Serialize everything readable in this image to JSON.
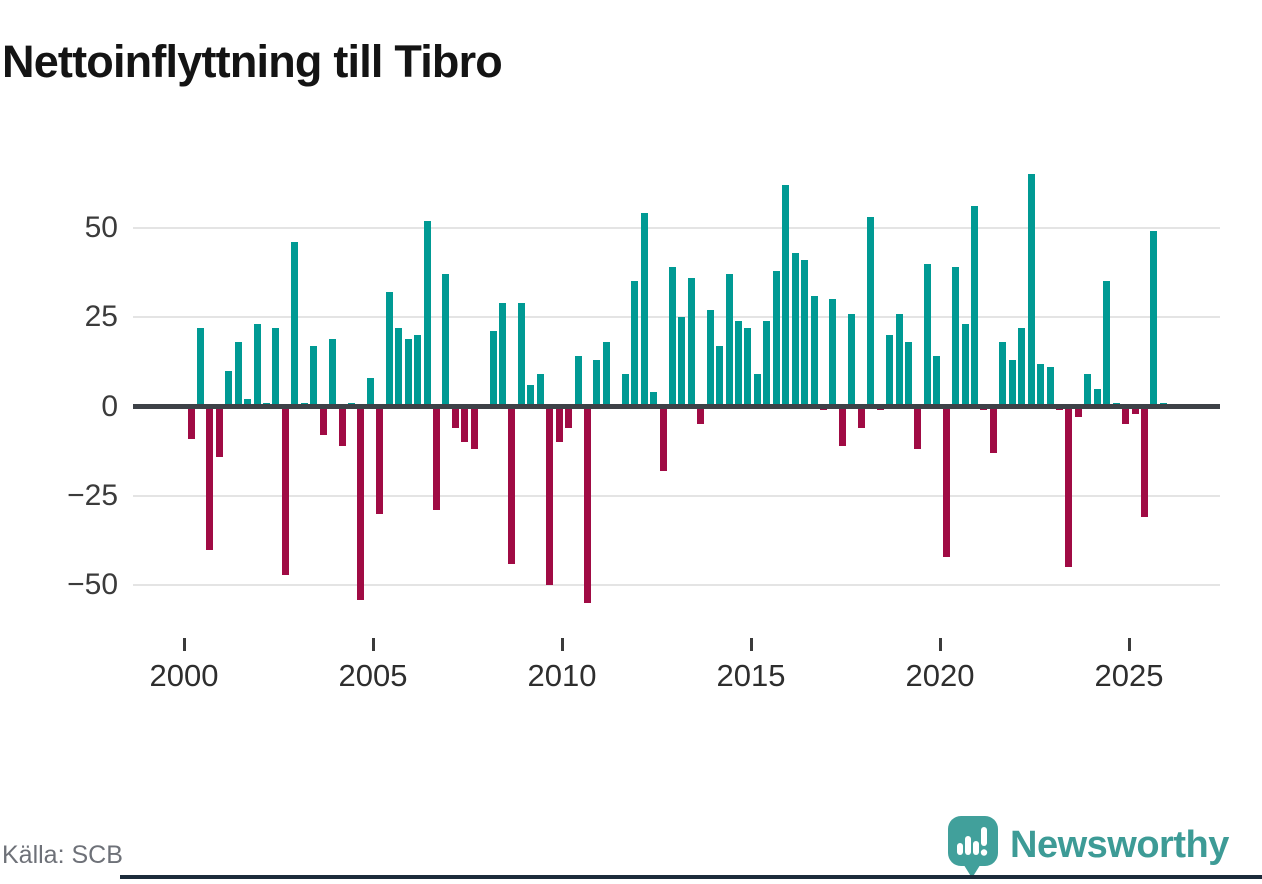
{
  "title": "Nettoinflyttning till Tibro",
  "source": "Källa: SCB",
  "branding": {
    "logo_text": "Newsworthy",
    "logo_wordmark_color": "#3d9b96",
    "logo_bubble_color": "#41a09b",
    "logo_icon": "bar-chart-exclamation-speech-bubble",
    "footer_bar_color": "#1c2b3a"
  },
  "chart_data": {
    "type": "bar",
    "title": "Nettoinflyttning till Tibro",
    "xlabel": "",
    "ylabel": "",
    "period": "quarterly",
    "start_quarter": "2000 Q1",
    "end_quarter": "2025 Q4",
    "x_tick_labels": [
      "2000",
      "2005",
      "2010",
      "2015",
      "2020",
      "2025"
    ],
    "y_tick_labels": [
      "50",
      "25",
      "0",
      "−25",
      "−50"
    ],
    "y_tick_values": [
      50,
      25,
      0,
      -25,
      -50
    ],
    "ylim": [
      -62,
      70
    ],
    "grid": "horizontal",
    "legend": "none",
    "colors": {
      "positive": "#009a94",
      "negative": "#a00b44"
    },
    "series": [
      {
        "name": "Nettoinflyttning",
        "values_per_quarter_from_2000Q1": [
          -9,
          22,
          -40,
          -14,
          10,
          18,
          2,
          23,
          1,
          22,
          -47,
          46,
          1,
          17,
          -8,
          19,
          -11,
          1,
          -54,
          8,
          -30,
          32,
          22,
          19,
          20,
          52,
          -29,
          37,
          -6,
          -10,
          -12,
          0,
          21,
          29,
          -44,
          29,
          6,
          9,
          -50,
          -10,
          -6,
          14,
          -55,
          13,
          18,
          0,
          9,
          35,
          54,
          4,
          -18,
          39,
          25,
          36,
          -5,
          27,
          17,
          37,
          24,
          22,
          9,
          24,
          38,
          62,
          43,
          41,
          31,
          -1,
          30,
          -11,
          26,
          -6,
          53,
          -1,
          20,
          26,
          18,
          -12,
          40,
          14,
          -42,
          39,
          23,
          56,
          -1,
          -13,
          18,
          13,
          22,
          65,
          12,
          11,
          -1,
          -45,
          -3,
          9,
          5,
          35,
          1,
          -5,
          -2,
          -31,
          49,
          1
        ]
      }
    ]
  }
}
